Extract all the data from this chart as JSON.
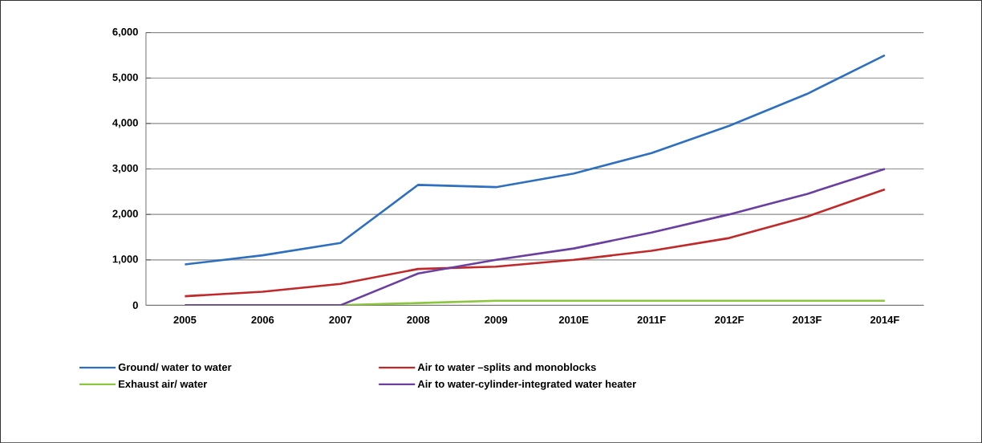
{
  "chart_data": {
    "type": "line",
    "categories": [
      "2005",
      "2006",
      "2007",
      "2008",
      "2009",
      "2010E",
      "2011F",
      "2012F",
      "2013F",
      "2014F"
    ],
    "series": [
      {
        "name": "Ground/ water to water",
        "color": "#2e6fbf",
        "values": [
          900,
          1100,
          1370,
          2650,
          2600,
          2900,
          3350,
          3950,
          4650,
          5500
        ]
      },
      {
        "name": "Air to water –splits and monoblocks",
        "color": "#c0282a",
        "values": [
          200,
          300,
          470,
          800,
          850,
          1000,
          1200,
          1480,
          1950,
          2550
        ]
      },
      {
        "name": "Exhaust air/ water",
        "color": "#8cc63f",
        "values": [
          0,
          0,
          0,
          50,
          100,
          100,
          100,
          100,
          100,
          100
        ]
      },
      {
        "name": "Air to water-cylinder-integrated water heater",
        "color": "#6a3fa0",
        "values": [
          0,
          0,
          0,
          700,
          1000,
          1250,
          1600,
          2000,
          2450,
          3000
        ]
      }
    ],
    "ylim": [
      0,
      6000
    ],
    "yticks": [
      0,
      {
        "value": 1000,
        "label": "1,000"
      },
      {
        "value": 2000,
        "label": "2,000"
      },
      {
        "value": 3000,
        "label": "3,000"
      },
      {
        "value": 4000,
        "label": "4,000"
      },
      {
        "value": 5000,
        "label": "5,000"
      },
      {
        "value": 6000,
        "label": "6,000"
      }
    ],
    "grid": "y",
    "legend": "bottom",
    "marker": "none",
    "line_style": "solid"
  }
}
